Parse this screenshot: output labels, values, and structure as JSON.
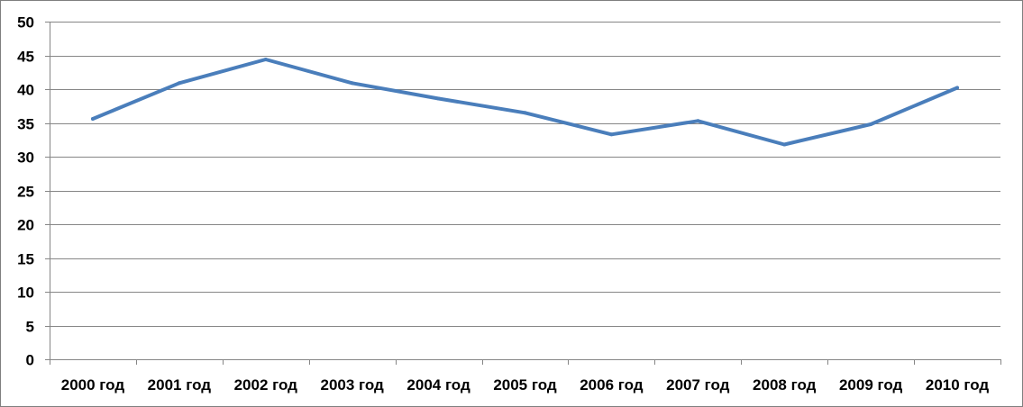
{
  "chart_data": {
    "type": "line",
    "categories": [
      "2000 год",
      "2001 год",
      "2002 год",
      "2003 год",
      "2004 год",
      "2005 год",
      "2006 год",
      "2007 год",
      "2008 год",
      "2009 год",
      "2010 год"
    ],
    "series": [
      {
        "values": [
          35.6,
          40.9,
          44.4,
          40.9,
          38.6,
          36.5,
          33.3,
          35.3,
          31.8,
          34.8,
          40.2
        ]
      }
    ],
    "title": "",
    "xlabel": "",
    "ylabel": "",
    "ylim": [
      0,
      50
    ],
    "yticks": [
      "0",
      "5",
      "10",
      "15",
      "20",
      "25",
      "30",
      "35",
      "40",
      "45",
      "50"
    ],
    "grid": "horizontal",
    "legend": "none",
    "line_color": "#4a7ebb",
    "grid_color": "#868686"
  }
}
